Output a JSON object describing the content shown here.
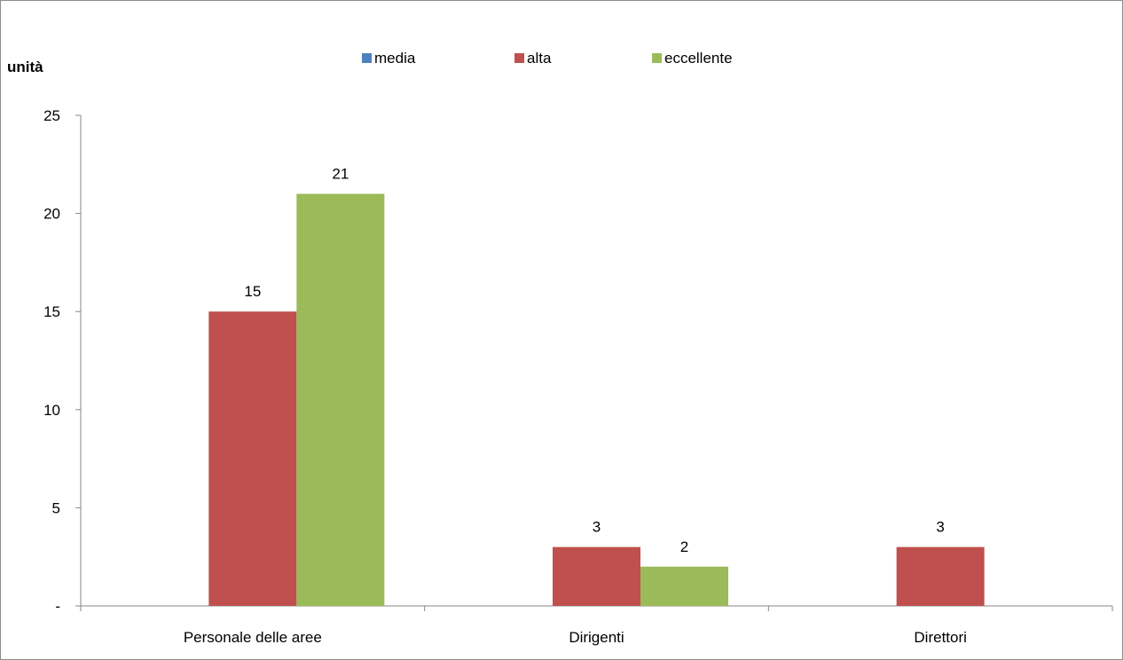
{
  "chart_data": {
    "type": "bar",
    "title": "",
    "ylabel": "unità",
    "xlabel": "",
    "categories": [
      "Personale delle aree",
      "Dirigenti",
      "Direttori"
    ],
    "series": [
      {
        "name": "media",
        "color": "#4f81bd",
        "values": [
          0,
          0,
          0
        ]
      },
      {
        "name": "alta",
        "color": "#c0504d",
        "values": [
          15,
          3,
          3
        ]
      },
      {
        "name": "eccellente",
        "color": "#9bbb59",
        "values": [
          21,
          2,
          0
        ]
      }
    ],
    "ylim": [
      0,
      25
    ],
    "yticks": [
      {
        "value": 0,
        "label": "-"
      },
      {
        "value": 5,
        "label": "5"
      },
      {
        "value": 10,
        "label": "10"
      },
      {
        "value": 15,
        "label": "15"
      },
      {
        "value": 20,
        "label": "20"
      },
      {
        "value": 25,
        "label": "25"
      }
    ],
    "grid": false,
    "legend_position": "top"
  }
}
